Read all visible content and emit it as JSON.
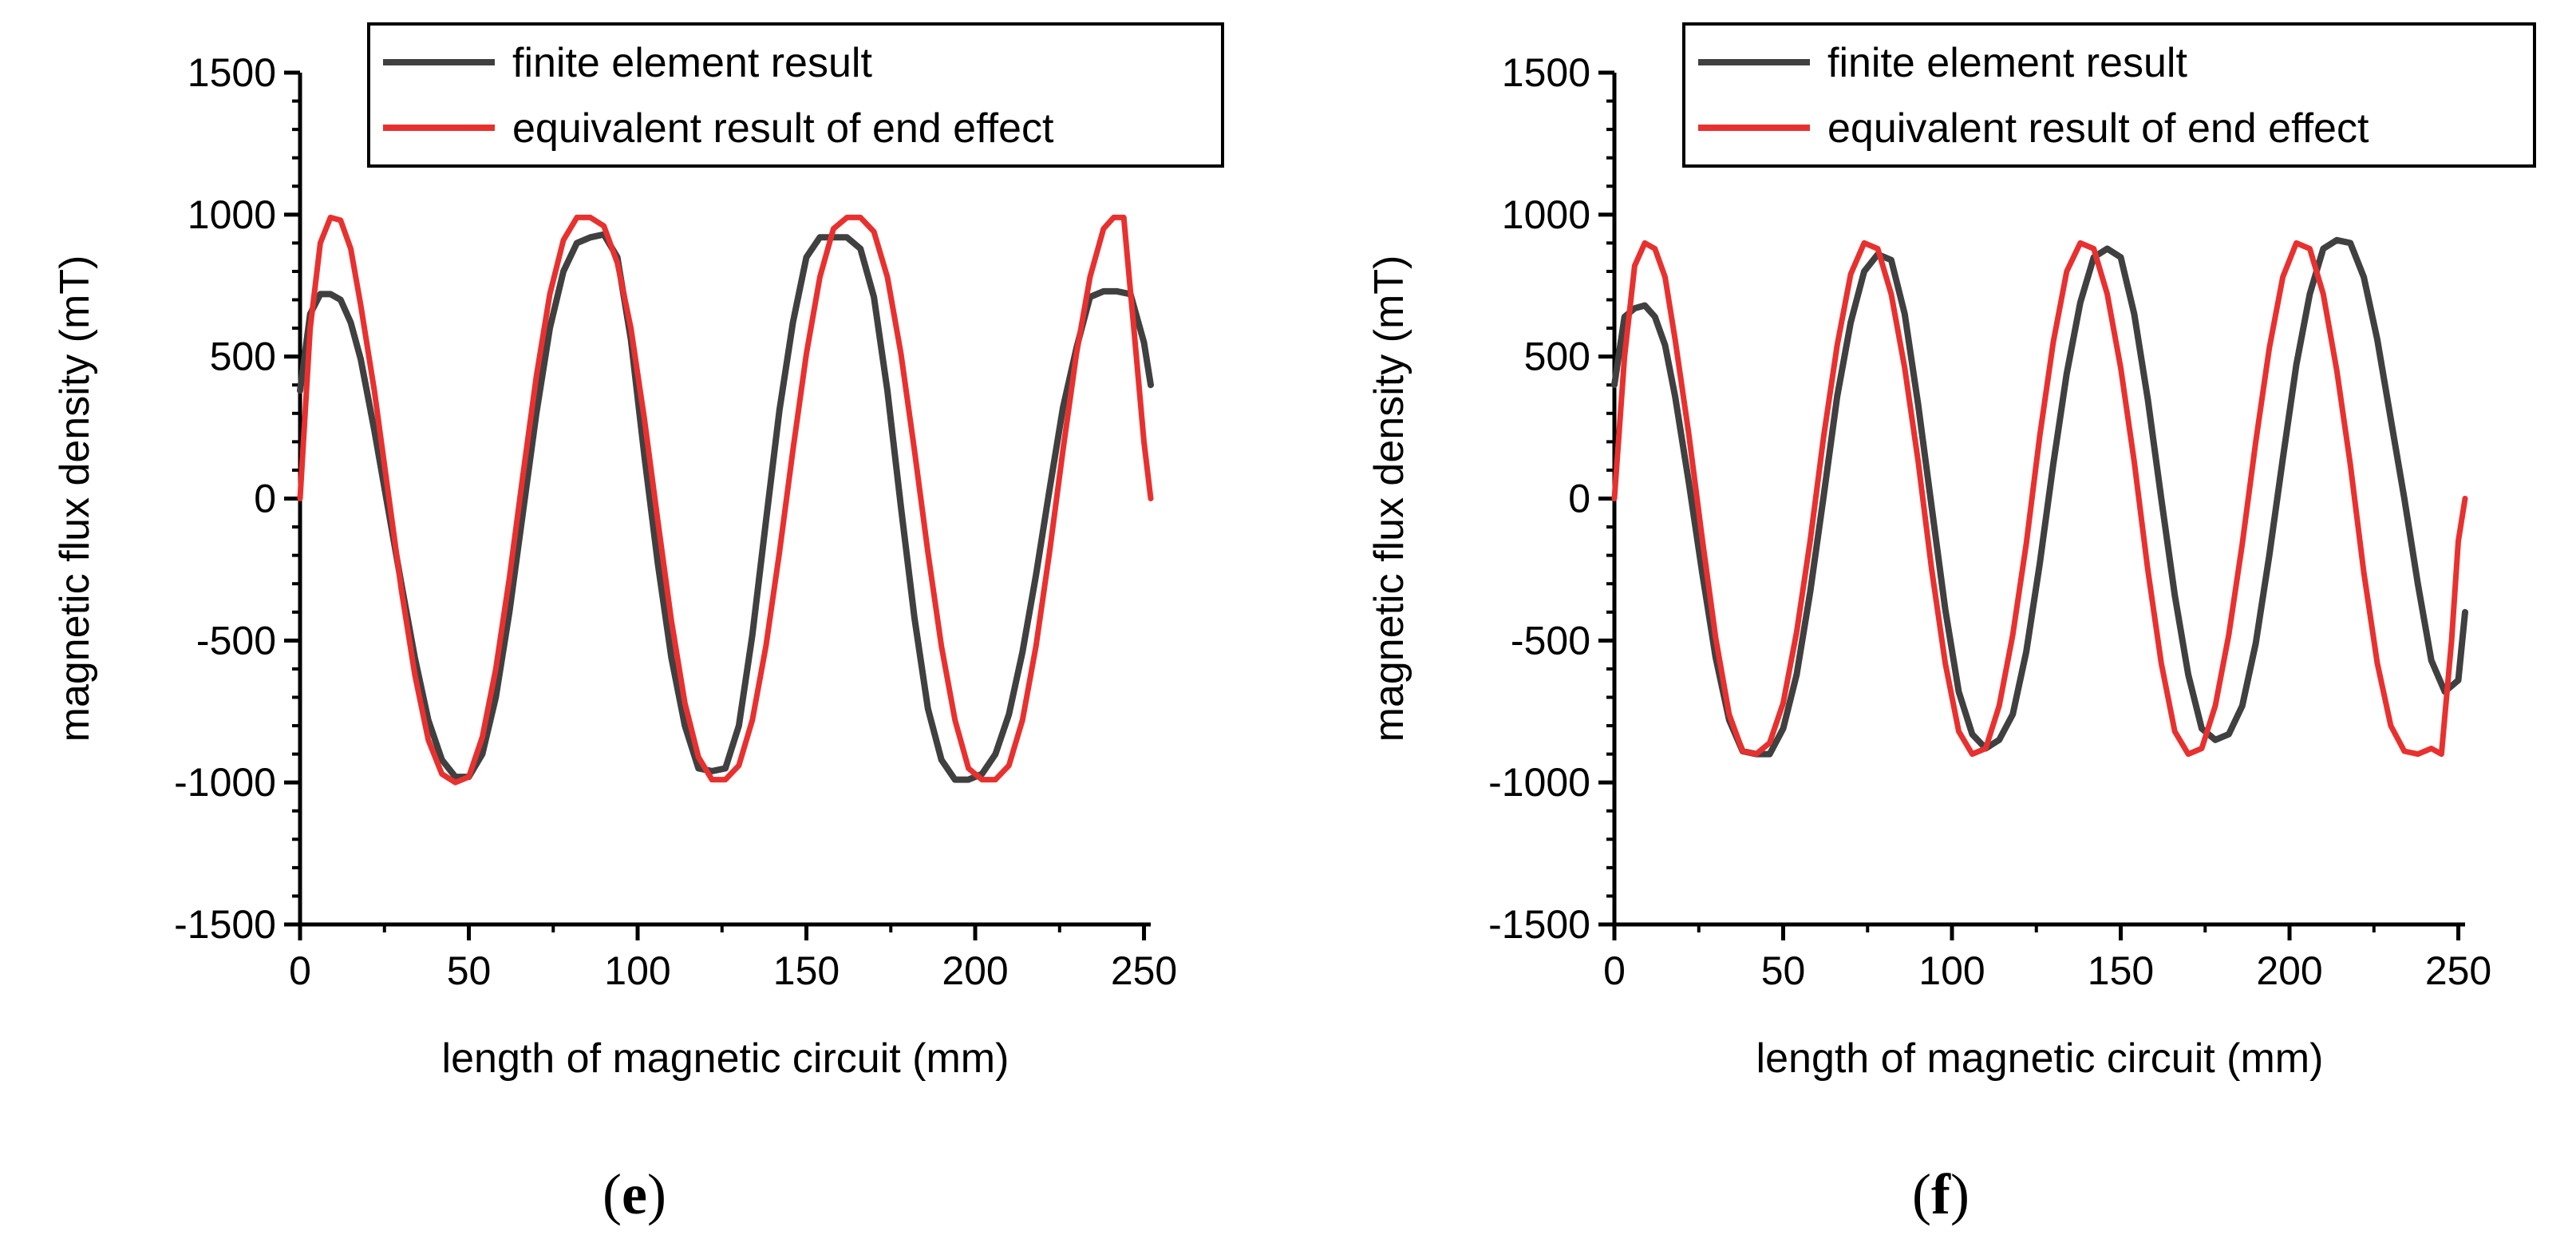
{
  "chart_data": [
    {
      "type": "line",
      "panel_label": "(e)",
      "panel_letter": "e",
      "xlabel": "length of magnetic circuit (mm)",
      "ylabel": "magnetic flux density (mT)",
      "xlim": [
        0,
        252
      ],
      "ylim": [
        -1500,
        1500
      ],
      "x_ticks": [
        0,
        50,
        100,
        150,
        200,
        250
      ],
      "y_ticks": [
        -1500,
        -1000,
        -500,
        0,
        500,
        1000,
        1500
      ],
      "legend_position": "top-right",
      "series": [
        {
          "name": "finite element result",
          "color": "#404040",
          "x": [
            0,
            3,
            6,
            9,
            12,
            15,
            18,
            22,
            26,
            30,
            34,
            38,
            42,
            46,
            50,
            54,
            58,
            62,
            66,
            70,
            74,
            78,
            82,
            86,
            90,
            94,
            98,
            102,
            106,
            110,
            114,
            118,
            122,
            126,
            130,
            134,
            138,
            142,
            146,
            150,
            154,
            158,
            162,
            166,
            170,
            174,
            178,
            182,
            186,
            190,
            194,
            198,
            202,
            206,
            210,
            214,
            218,
            222,
            226,
            230,
            234,
            238,
            242,
            246,
            250,
            252
          ],
          "y": [
            380,
            650,
            720,
            720,
            700,
            620,
            490,
            240,
            -30,
            -300,
            -560,
            -780,
            -920,
            -980,
            -980,
            -900,
            -700,
            -400,
            -50,
            300,
            600,
            800,
            900,
            920,
            930,
            850,
            560,
            150,
            -230,
            -560,
            -800,
            -950,
            -960,
            -950,
            -800,
            -480,
            -80,
            310,
            620,
            850,
            920,
            920,
            920,
            880,
            710,
            380,
            -30,
            -420,
            -740,
            -920,
            -990,
            -990,
            -970,
            -900,
            -760,
            -540,
            -270,
            30,
            320,
            530,
            710,
            730,
            730,
            720,
            550,
            400
          ]
        },
        {
          "name": "equivalent result of end effect",
          "color": "#e8312f",
          "x": [
            0,
            3,
            6,
            9,
            12,
            15,
            18,
            22,
            26,
            30,
            34,
            38,
            42,
            46,
            50,
            54,
            58,
            62,
            66,
            70,
            74,
            78,
            82,
            86,
            90,
            94,
            98,
            102,
            106,
            110,
            114,
            118,
            122,
            126,
            130,
            134,
            138,
            142,
            146,
            150,
            154,
            158,
            162,
            166,
            170,
            174,
            178,
            182,
            186,
            190,
            194,
            198,
            202,
            206,
            210,
            214,
            218,
            222,
            226,
            230,
            234,
            238,
            241,
            244,
            247,
            250,
            252
          ],
          "y": [
            0,
            600,
            900,
            990,
            980,
            880,
            680,
            380,
            30,
            -320,
            -620,
            -850,
            -970,
            -1000,
            -980,
            -840,
            -600,
            -280,
            80,
            430,
            720,
            910,
            990,
            990,
            960,
            830,
            600,
            280,
            -80,
            -430,
            -720,
            -910,
            -990,
            -990,
            -940,
            -780,
            -520,
            -190,
            170,
            510,
            780,
            950,
            990,
            990,
            940,
            780,
            510,
            170,
            -190,
            -520,
            -780,
            -950,
            -990,
            -990,
            -940,
            -780,
            -520,
            -190,
            170,
            510,
            780,
            950,
            990,
            990,
            600,
            200,
            0
          ]
        }
      ]
    },
    {
      "type": "line",
      "panel_label": "(f)",
      "panel_letter": "f",
      "xlabel": "length of magnetic circuit (mm)",
      "ylabel": "magnetic flux density (mT)",
      "xlim": [
        0,
        252
      ],
      "ylim": [
        -1500,
        1500
      ],
      "x_ticks": [
        0,
        50,
        100,
        150,
        200,
        250
      ],
      "y_ticks": [
        -1500,
        -1000,
        -500,
        0,
        500,
        1000,
        1500
      ],
      "legend_position": "top-right",
      "series": [
        {
          "name": "finite element result",
          "color": "#404040",
          "x": [
            0,
            3,
            6,
            9,
            12,
            15,
            18,
            22,
            26,
            30,
            34,
            38,
            42,
            46,
            50,
            54,
            58,
            62,
            66,
            70,
            74,
            78,
            82,
            86,
            90,
            94,
            98,
            102,
            106,
            110,
            114,
            118,
            122,
            126,
            130,
            134,
            138,
            142,
            146,
            150,
            154,
            158,
            162,
            166,
            170,
            174,
            178,
            182,
            186,
            190,
            194,
            198,
            202,
            206,
            210,
            214,
            218,
            222,
            226,
            230,
            234,
            238,
            242,
            246,
            250,
            252
          ],
          "y": [
            400,
            640,
            670,
            680,
            640,
            540,
            360,
            60,
            -260,
            -560,
            -780,
            -890,
            -900,
            -900,
            -810,
            -620,
            -330,
            10,
            360,
            620,
            800,
            860,
            840,
            650,
            330,
            -30,
            -390,
            -680,
            -830,
            -880,
            -850,
            -760,
            -540,
            -230,
            120,
            440,
            690,
            850,
            880,
            850,
            650,
            350,
            0,
            -340,
            -620,
            -810,
            -850,
            -830,
            -730,
            -510,
            -200,
            140,
            470,
            720,
            880,
            910,
            900,
            780,
            560,
            280,
            0,
            -300,
            -570,
            -680,
            -640,
            -400
          ]
        },
        {
          "name": "equivalent result of end effect",
          "color": "#e8312f",
          "x": [
            0,
            3,
            6,
            9,
            12,
            15,
            18,
            22,
            26,
            30,
            34,
            38,
            42,
            46,
            50,
            54,
            58,
            62,
            66,
            70,
            74,
            78,
            82,
            86,
            90,
            94,
            98,
            102,
            106,
            110,
            114,
            118,
            122,
            126,
            130,
            134,
            138,
            142,
            146,
            150,
            154,
            158,
            162,
            166,
            170,
            174,
            178,
            182,
            186,
            190,
            194,
            198,
            202,
            206,
            210,
            214,
            218,
            222,
            226,
            230,
            234,
            238,
            242,
            245,
            248,
            250,
            252
          ],
          "y": [
            0,
            500,
            820,
            900,
            880,
            780,
            560,
            230,
            -140,
            -490,
            -760,
            -890,
            -900,
            -860,
            -720,
            -470,
            -150,
            220,
            540,
            790,
            900,
            880,
            720,
            460,
            130,
            -250,
            -580,
            -820,
            -900,
            -880,
            -730,
            -480,
            -160,
            220,
            550,
            800,
            900,
            880,
            720,
            460,
            130,
            -250,
            -580,
            -820,
            -900,
            -880,
            -730,
            -480,
            -160,
            200,
            530,
            780,
            900,
            880,
            720,
            450,
            120,
            -260,
            -580,
            -800,
            -890,
            -900,
            -880,
            -900,
            -500,
            -150,
            0
          ]
        }
      ]
    }
  ]
}
